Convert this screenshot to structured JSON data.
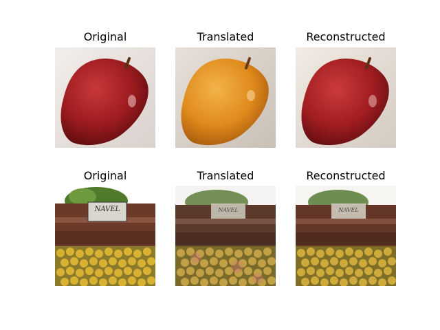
{
  "figure": {
    "rows": [
      {
        "subject": "apple",
        "panels": [
          {
            "title": "Original",
            "fruit_color": "#9b1b1f",
            "bg_color": "#ece6e2"
          },
          {
            "title": "Translated",
            "fruit_color": "#e08a1c",
            "bg_color": "#dcd6cf"
          },
          {
            "title": "Reconstructed",
            "fruit_color": "#a11d20",
            "bg_color": "#e9e3dc"
          }
        ]
      },
      {
        "subject": "fruit-crate",
        "panels": [
          {
            "title": "Original",
            "sign_text": "NAVEL"
          },
          {
            "title": "Translated",
            "sign_text": "NAVEL"
          },
          {
            "title": "Reconstructed",
            "sign_text": "NAVEL"
          }
        ]
      }
    ]
  }
}
